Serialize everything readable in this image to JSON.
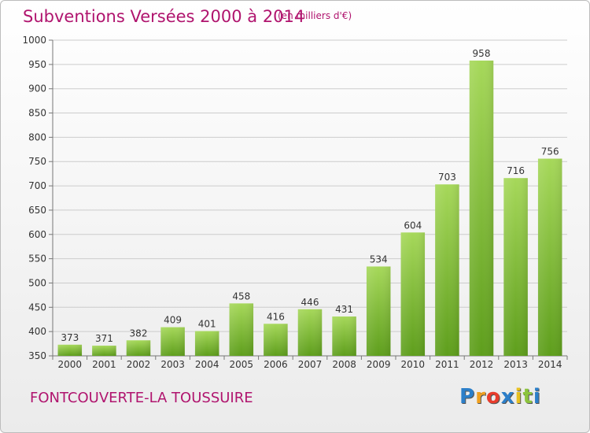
{
  "title": "Subventions Versées 2000 à 2014",
  "subtitle": "(en milliers d'€)",
  "commune": "FONTCOUVERTE-LA TOUSSUIRE",
  "logo": {
    "letters": [
      "P",
      "r",
      "o",
      "x",
      "i",
      "t",
      "i"
    ],
    "colors": [
      "#2c7fc9",
      "#f0a020",
      "#e83c2c",
      "#2c7fc9",
      "#e8c020",
      "#8cc43c",
      "#2c7fc9"
    ]
  },
  "colors": {
    "bar_top": "#a6d85a",
    "bar_bottom": "#5e9e1c",
    "grid": "#cccccc",
    "accent": "#b0146e"
  },
  "chart_data": {
    "type": "bar",
    "categories": [
      "2000",
      "2001",
      "2002",
      "2003",
      "2004",
      "2005",
      "2006",
      "2007",
      "2008",
      "2009",
      "2010",
      "2011",
      "2012",
      "2013",
      "2014"
    ],
    "values": [
      373,
      371,
      382,
      409,
      401,
      458,
      416,
      446,
      431,
      534,
      604,
      703,
      958,
      716,
      756
    ],
    "ylim": [
      350,
      1000
    ],
    "yticks": [
      350,
      400,
      450,
      500,
      550,
      600,
      650,
      700,
      750,
      800,
      850,
      900,
      950,
      1000
    ],
    "grid": true,
    "legend": "none"
  }
}
